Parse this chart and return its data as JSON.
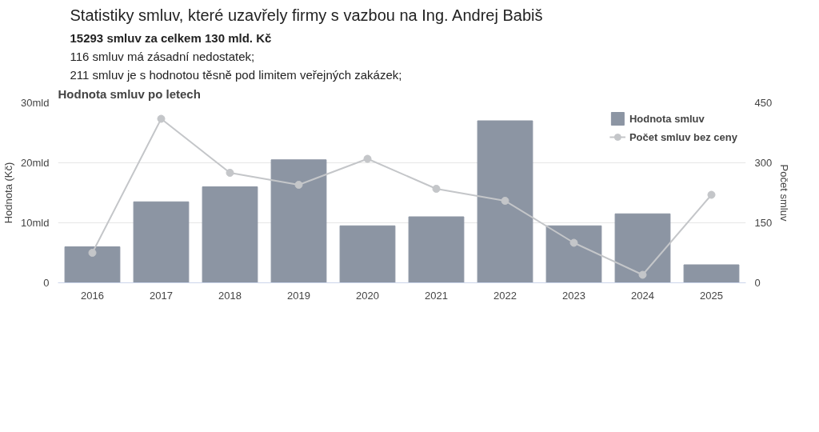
{
  "chart_data": {
    "type": "bar",
    "title": "Statistiky smluv, které uzavřely firmy s vazbou na Ing. Andrej Babiš",
    "subtitle": "Hodnota smluv po letech",
    "annotations": [
      "15293 smluv za celkem 130 mld. Kč",
      "116 smluv má zásadní nedostatek;",
      "211 smluv je s hodnotou těsně pod limitem veřejných zakázek;"
    ],
    "ylabel": "Hodnota (Kč)",
    "y2label": "Počet smluv",
    "categories": [
      "2016",
      "2017",
      "2018",
      "2019",
      "2020",
      "2021",
      "2022",
      "2023",
      "2024",
      "2025"
    ],
    "series": [
      {
        "name": "Hodnota smluv",
        "color": "#8c95a3",
        "values": [
          6,
          13.5,
          16,
          20.5,
          9.5,
          11,
          27,
          9.5,
          11.5,
          3
        ]
      },
      {
        "name": "Počet smluv bez ceny",
        "type": "line",
        "axis": "y2",
        "color": "#c4c6c9",
        "marker": "circle",
        "values": [
          75,
          410,
          275,
          245,
          310,
          235,
          205,
          100,
          20,
          220
        ]
      }
    ],
    "ylim": [
      0,
      30
    ],
    "yticks": [
      {
        "value": 0,
        "label": "0"
      },
      {
        "value": 10,
        "label": "10mld"
      },
      {
        "value": 20,
        "label": "20mld"
      },
      {
        "value": 30,
        "label": "30mld"
      }
    ],
    "y2lim": [
      0,
      450
    ],
    "y2ticks": [
      0,
      150,
      300,
      450
    ],
    "grid": "y",
    "legend": "top right"
  }
}
